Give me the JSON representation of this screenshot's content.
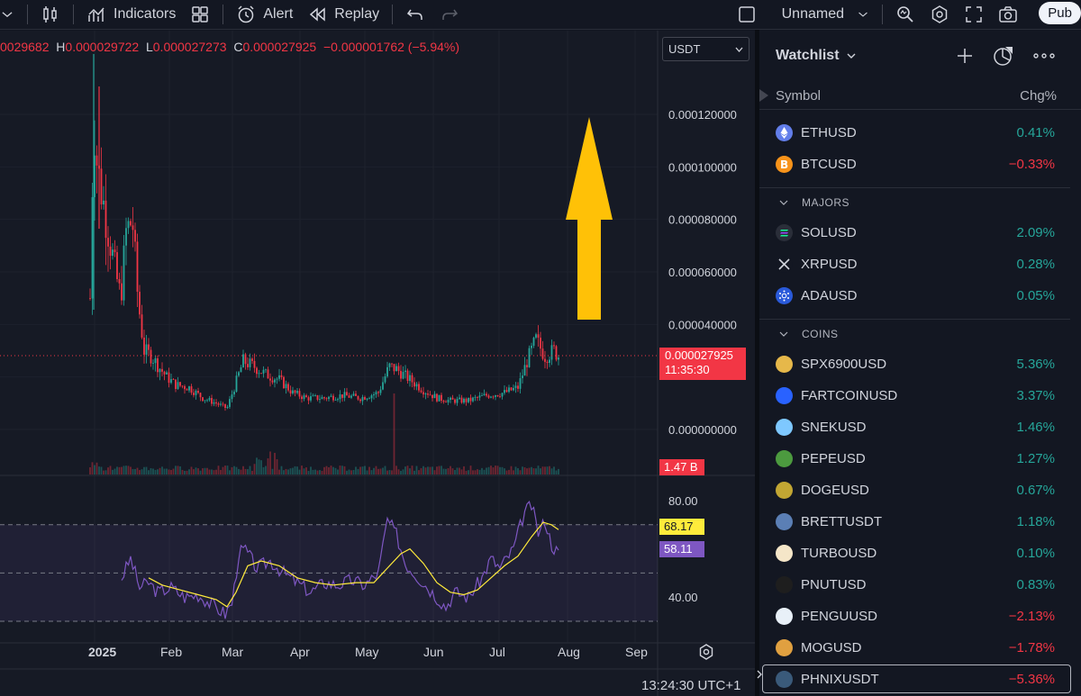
{
  "toolbar": {
    "indicators_label": "Indicators",
    "alert_label": "Alert",
    "replay_label": "Replay",
    "layout_name": "Unnamed",
    "publish_label": "Pub"
  },
  "legend": {
    "open_value": "0029682",
    "high_key": "H",
    "high_value": "0.000029722",
    "low_key": "L",
    "low_value": "0.000027273",
    "close_key": "C",
    "close_value": "0.000027925",
    "change": "−0.000001762 (−5.94%)"
  },
  "currency": {
    "selected": "USDT"
  },
  "price_axis": {
    "labels": [
      "0.000120000",
      "0.000100000",
      "0.000080000",
      "0.000060000",
      "0.000040000",
      "0.000000000"
    ],
    "last_price": "0.000027925",
    "countdown": "11:35:30",
    "volume_label": "1.47 B"
  },
  "rsi_axis": {
    "labels": [
      "80.00",
      "40.00"
    ],
    "ma_value": "68.17",
    "rsi_value": "58.11"
  },
  "time_axis": {
    "labels": [
      "2025",
      "Feb",
      "Mar",
      "Apr",
      "May",
      "Jun",
      "Jul",
      "Aug",
      "Sep"
    ],
    "clock": "13:24:30 UTC+1"
  },
  "colors": {
    "up": "#26a69a",
    "down": "#f23645",
    "rsi": "#7e57c2",
    "rsi_ma": "#ffeb3b",
    "arrow": "#ffc107"
  },
  "watchlist": {
    "title": "Watchlist",
    "col_symbol": "Symbol",
    "col_change": "Chg%",
    "sections": [
      {
        "label": "MAJORS"
      },
      {
        "label": "COINS"
      }
    ],
    "items": [
      {
        "symbol": "ETHUSD",
        "change": "0.41%",
        "dir": "pos",
        "color": "#627eea",
        "icon": "eth-icon"
      },
      {
        "symbol": "BTCUSD",
        "change": "−0.33%",
        "dir": "neg",
        "color": "#f7931a",
        "icon": "btc-icon"
      },
      {
        "symbol": "SOLUSD",
        "change": "2.09%",
        "dir": "pos",
        "color": "#2a2e39",
        "icon": "sol-icon"
      },
      {
        "symbol": "XRPUSD",
        "change": "0.28%",
        "dir": "pos",
        "color": "#131722",
        "icon": "xrp-icon"
      },
      {
        "symbol": "ADAUSD",
        "change": "0.05%",
        "dir": "pos",
        "color": "#2a5ada",
        "icon": "ada-icon"
      },
      {
        "symbol": "SPX6900USD",
        "change": "5.36%",
        "dir": "pos",
        "color": "#e6b84a",
        "icon": "spx-icon"
      },
      {
        "symbol": "FARTCOINUSD",
        "change": "3.37%",
        "dir": "pos",
        "color": "#2962ff",
        "icon": "fartcoin-icon"
      },
      {
        "symbol": "SNEKUSD",
        "change": "1.46%",
        "dir": "pos",
        "color": "#7ec8ff",
        "icon": "snek-icon"
      },
      {
        "symbol": "PEPEUSD",
        "change": "1.27%",
        "dir": "pos",
        "color": "#4c9a3f",
        "icon": "pepe-icon"
      },
      {
        "symbol": "DOGEUSD",
        "change": "0.67%",
        "dir": "pos",
        "color": "#c2a633",
        "icon": "doge-icon"
      },
      {
        "symbol": "BRETTUSDT",
        "change": "1.18%",
        "dir": "pos",
        "color": "#5b7fb5",
        "icon": "brett-icon"
      },
      {
        "symbol": "TURBOUSD",
        "change": "0.10%",
        "dir": "pos",
        "color": "#f5e6c8",
        "icon": "turbo-icon"
      },
      {
        "symbol": "PNUTUSD",
        "change": "0.83%",
        "dir": "pos",
        "color": "#1e1e1e",
        "icon": "pnut-icon"
      },
      {
        "symbol": "PENGUUSD",
        "change": "−2.13%",
        "dir": "neg",
        "color": "#e8f0f8",
        "icon": "pengu-icon"
      },
      {
        "symbol": "MOGUSD",
        "change": "−1.78%",
        "dir": "neg",
        "color": "#e0a040",
        "icon": "mog-icon"
      },
      {
        "symbol": "PHNIXUSDT",
        "change": "−5.36%",
        "dir": "neg",
        "color": "#3a5a7a",
        "icon": "phnix-icon"
      }
    ]
  }
}
